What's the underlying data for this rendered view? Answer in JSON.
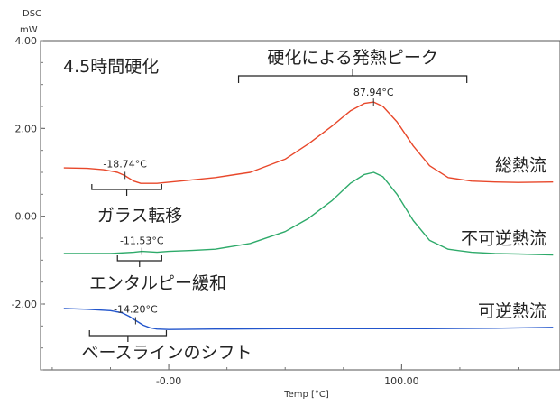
{
  "chart_data": {
    "type": "line",
    "title": "4.5時間硬化",
    "ylabel": "DSC",
    "yunit": "mW",
    "xlabel": "Temp [°C]",
    "xlim": [
      -55,
      168
    ],
    "ylim": [
      -3.5,
      4.0
    ],
    "y_ticks": [
      "4.00",
      "2.00",
      "0.00",
      "-2.00"
    ],
    "x_ticks": [
      "-0.00",
      "100.00"
    ],
    "series": [
      {
        "name": "総熱流",
        "color": "#e8472a",
        "x": [
          -45,
          -35,
          -28,
          -22,
          -19,
          -15,
          -12,
          -5,
          5,
          20,
          35,
          50,
          60,
          70,
          78,
          84,
          88,
          92,
          98,
          105,
          112,
          120,
          130,
          140,
          150,
          165
        ],
        "y": [
          1.1,
          1.09,
          1.06,
          1.0,
          0.93,
          0.8,
          0.75,
          0.75,
          0.8,
          0.88,
          1.0,
          1.3,
          1.65,
          2.05,
          2.4,
          2.57,
          2.6,
          2.5,
          2.15,
          1.6,
          1.15,
          0.88,
          0.8,
          0.78,
          0.77,
          0.78
        ]
      },
      {
        "name": "不可逆熱流",
        "color": "#2eaa6a",
        "x": [
          -45,
          -35,
          -25,
          -15,
          -11.5,
          -5,
          0,
          10,
          20,
          35,
          50,
          60,
          70,
          78,
          84,
          88,
          92,
          98,
          105,
          112,
          120,
          130,
          140,
          150,
          165
        ],
        "y": [
          -0.85,
          -0.85,
          -0.85,
          -0.82,
          -0.8,
          -0.82,
          -0.8,
          -0.78,
          -0.75,
          -0.62,
          -0.35,
          -0.05,
          0.35,
          0.75,
          0.95,
          1.0,
          0.9,
          0.5,
          -0.1,
          -0.55,
          -0.75,
          -0.82,
          -0.85,
          -0.86,
          -0.88
        ]
      },
      {
        "name": "可逆熱流",
        "color": "#2255cc",
        "x": [
          -45,
          -35,
          -25,
          -20,
          -17,
          -14,
          -11,
          -8,
          -5,
          0,
          20,
          50,
          80,
          110,
          140,
          165
        ],
        "y": [
          -2.1,
          -2.12,
          -2.15,
          -2.2,
          -2.28,
          -2.38,
          -2.48,
          -2.54,
          -2.57,
          -2.58,
          -2.57,
          -2.56,
          -2.56,
          -2.56,
          -2.55,
          -2.53
        ]
      }
    ],
    "annotations": {
      "cure_peak": {
        "text": "硬化による発熱ピーク",
        "value": "87.94°C",
        "x": 87.94,
        "y": 2.6,
        "range": [
          30,
          128
        ]
      },
      "glass_transition": {
        "text": "ガラス転移",
        "value": "-18.74°C",
        "x": -18.74,
        "y": 0.93,
        "range": [
          -33,
          -3
        ]
      },
      "enthalpy_relaxation": {
        "text": "エンタルピー緩和",
        "value": "-11.53°C",
        "x": -11.53,
        "y": -0.8,
        "range": [
          -22,
          -3
        ]
      },
      "baseline_shift": {
        "text": "ベースラインのシフト",
        "value": "-14.20°C",
        "x": -14.2,
        "y": -2.38,
        "range": [
          -34,
          -1
        ]
      }
    },
    "grid": false
  }
}
